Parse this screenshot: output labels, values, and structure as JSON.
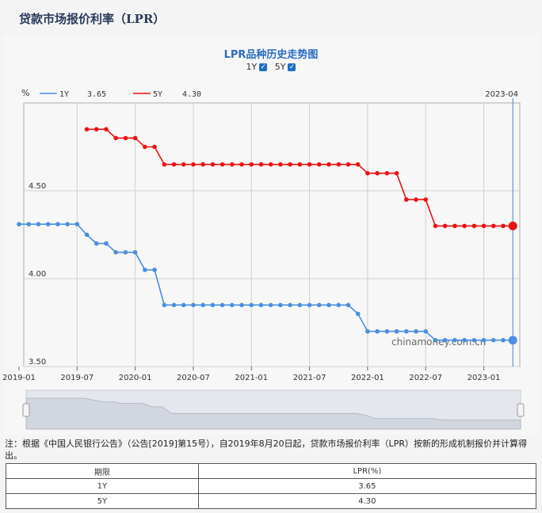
{
  "page_title": "贷款市场报价利率（LPR）",
  "chart_title": "LPR品种历史走势图",
  "toggles": [
    {
      "label": "1Y",
      "checked": true
    },
    {
      "label": "5Y",
      "checked": true
    }
  ],
  "note": "注：根据《中国人民银行公告》（公告[2019]第15号），自2019年8月20日起，贷款市场报价利率（LPR）按新的形成机制报价并计算得出。",
  "table": {
    "headers": [
      "期限",
      "LPR(%)"
    ],
    "rows": [
      [
        "1Y",
        "3.65"
      ],
      [
        "5Y",
        "4.30"
      ]
    ]
  },
  "chart_data": {
    "type": "line",
    "title": "LPR品种历史走势图",
    "ylabel": "%",
    "ylim": [
      3.5,
      4.98
    ],
    "yticks": [
      "4.50",
      "4.00",
      "3.50"
    ],
    "xticks": [
      "2019-01",
      "2019-07",
      "2020-01",
      "2020-07",
      "2021-01",
      "2021-07",
      "2022-01",
      "2022-07",
      "2023-01"
    ],
    "cursor_label": "2023-04",
    "watermark": "chinamoney.com.cn",
    "colors": {
      "1Y": "#4a8fe0",
      "5Y": "#ee1111"
    },
    "legend": [
      {
        "name": "1Y",
        "value": "3.65"
      },
      {
        "name": "5Y",
        "value": "4.30"
      }
    ],
    "series": [
      {
        "name": "1Y",
        "x": [
          "2019-01",
          "2019-02",
          "2019-03",
          "2019-04",
          "2019-05",
          "2019-06",
          "2019-07",
          "2019-08",
          "2019-09",
          "2019-10",
          "2019-11",
          "2019-12",
          "2020-01",
          "2020-02",
          "2020-03",
          "2020-04",
          "2020-05",
          "2020-06",
          "2020-07",
          "2020-08",
          "2020-09",
          "2020-10",
          "2020-11",
          "2020-12",
          "2021-01",
          "2021-02",
          "2021-03",
          "2021-04",
          "2021-05",
          "2021-06",
          "2021-07",
          "2021-08",
          "2021-09",
          "2021-10",
          "2021-11",
          "2021-12",
          "2022-01",
          "2022-02",
          "2022-03",
          "2022-04",
          "2022-05",
          "2022-06",
          "2022-07",
          "2022-08",
          "2022-09",
          "2022-10",
          "2022-11",
          "2022-12",
          "2023-01",
          "2023-02",
          "2023-03",
          "2023-04"
        ],
        "values": [
          4.31,
          4.31,
          4.31,
          4.31,
          4.31,
          4.31,
          4.31,
          4.25,
          4.2,
          4.2,
          4.15,
          4.15,
          4.15,
          4.05,
          4.05,
          3.85,
          3.85,
          3.85,
          3.85,
          3.85,
          3.85,
          3.85,
          3.85,
          3.85,
          3.85,
          3.85,
          3.85,
          3.85,
          3.85,
          3.85,
          3.85,
          3.85,
          3.85,
          3.85,
          3.85,
          3.8,
          3.7,
          3.7,
          3.7,
          3.7,
          3.7,
          3.7,
          3.7,
          3.65,
          3.65,
          3.65,
          3.65,
          3.65,
          3.65,
          3.65,
          3.65,
          3.65
        ]
      },
      {
        "name": "5Y",
        "x": [
          "2019-08",
          "2019-09",
          "2019-10",
          "2019-11",
          "2019-12",
          "2020-01",
          "2020-02",
          "2020-03",
          "2020-04",
          "2020-05",
          "2020-06",
          "2020-07",
          "2020-08",
          "2020-09",
          "2020-10",
          "2020-11",
          "2020-12",
          "2021-01",
          "2021-02",
          "2021-03",
          "2021-04",
          "2021-05",
          "2021-06",
          "2021-07",
          "2021-08",
          "2021-09",
          "2021-10",
          "2021-11",
          "2021-12",
          "2022-01",
          "2022-02",
          "2022-03",
          "2022-04",
          "2022-05",
          "2022-06",
          "2022-07",
          "2022-08",
          "2022-09",
          "2022-10",
          "2022-11",
          "2022-12",
          "2023-01",
          "2023-02",
          "2023-03",
          "2023-04"
        ],
        "values": [
          4.85,
          4.85,
          4.85,
          4.8,
          4.8,
          4.8,
          4.75,
          4.75,
          4.65,
          4.65,
          4.65,
          4.65,
          4.65,
          4.65,
          4.65,
          4.65,
          4.65,
          4.65,
          4.65,
          4.65,
          4.65,
          4.65,
          4.65,
          4.65,
          4.65,
          4.65,
          4.65,
          4.65,
          4.65,
          4.6,
          4.6,
          4.6,
          4.6,
          4.45,
          4.45,
          4.45,
          4.3,
          4.3,
          4.3,
          4.3,
          4.3,
          4.3,
          4.3,
          4.3,
          4.3
        ]
      }
    ]
  }
}
